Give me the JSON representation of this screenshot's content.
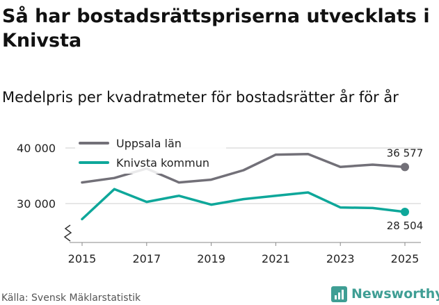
{
  "title": "Så har bostadsrättspriserna utvecklats i Knivsta",
  "subtitle": "Medelpris per kvadratmeter för bostadsrätter år för år",
  "source": "Källa: Svensk Mäklarstatistik",
  "brand": "Newsworthy",
  "colors": {
    "uppsala": "#727078",
    "knivsta": "#0ea79a",
    "grid": "#dddddd",
    "axis": "#888888",
    "text": "#222222"
  },
  "chart_data": {
    "type": "line",
    "title": "Medelpris per kvadratmeter för bostadsrätter år för år",
    "xlabel": "",
    "ylabel": "",
    "x": [
      2015,
      2016,
      2017,
      2018,
      2019,
      2020,
      2021,
      2022,
      2023,
      2024,
      2025
    ],
    "x_ticks": [
      2015,
      2017,
      2019,
      2021,
      2023,
      2025
    ],
    "y_ticks": [
      30000,
      40000
    ],
    "y_tick_labels": [
      "30 000",
      "40 000"
    ],
    "ylim": [
      23000,
      42000
    ],
    "grid": true,
    "legend_position": "top-left",
    "axis_break": true,
    "series": [
      {
        "name": "Uppsala län",
        "color_key": "uppsala",
        "values": [
          33800,
          34600,
          36300,
          33800,
          34300,
          36000,
          38800,
          38900,
          36600,
          37000,
          36577
        ],
        "end_label": "36 577"
      },
      {
        "name": "Knivsta kommun",
        "color_key": "knivsta",
        "values": [
          27200,
          32600,
          30300,
          31400,
          29800,
          30800,
          31400,
          32000,
          29300,
          29200,
          28504
        ],
        "end_label": "28 504"
      }
    ]
  }
}
